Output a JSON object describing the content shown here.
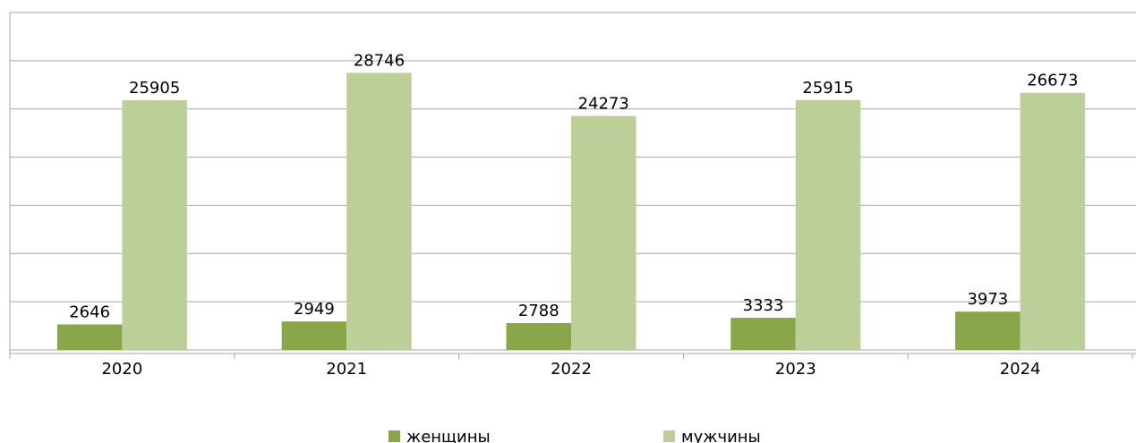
{
  "chart_data": {
    "type": "bar",
    "categories": [
      "2020",
      "2021",
      "2022",
      "2023",
      "2024"
    ],
    "series": [
      {
        "name": "женщины",
        "color": "#8aa64a",
        "values": [
          2646,
          2949,
          2788,
          3333,
          3973
        ]
      },
      {
        "name": "мужчины",
        "color": "#bccf98",
        "values": [
          25905,
          28746,
          24273,
          25915,
          26673
        ]
      }
    ],
    "ylim": [
      0,
      35000
    ],
    "yticks": [
      0,
      5000,
      10000,
      15000,
      20000,
      25000,
      30000,
      35000
    ],
    "grid": true,
    "legend": "bottom"
  }
}
